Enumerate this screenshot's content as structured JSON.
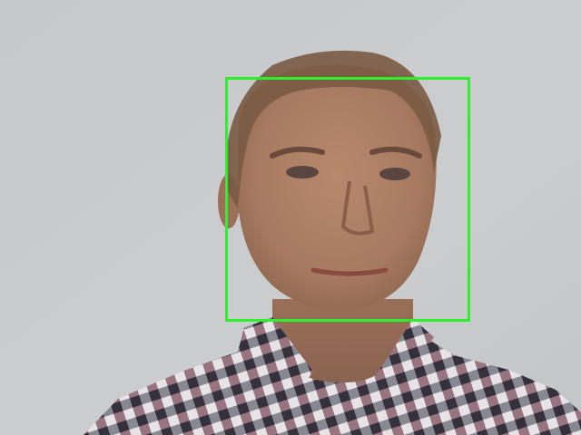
{
  "camera_view": {
    "detection_box_color": "#2bf02b",
    "background_color": "#c9cbcc"
  }
}
